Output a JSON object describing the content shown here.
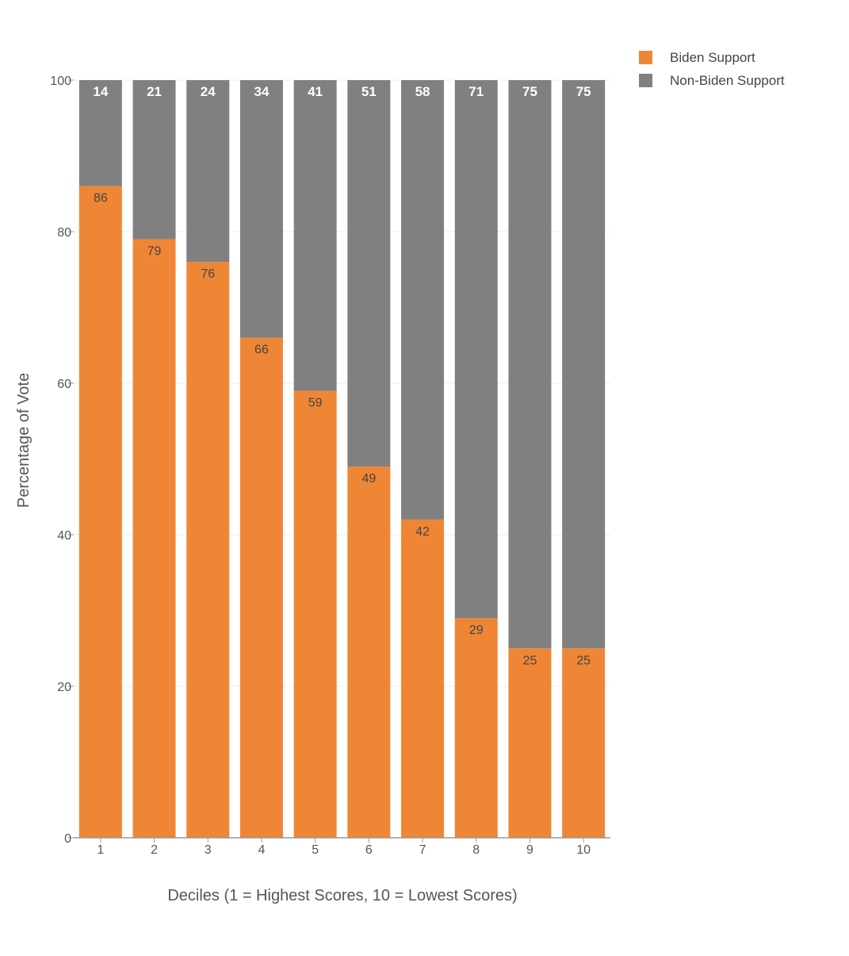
{
  "chart_data": {
    "type": "bar",
    "stacked": true,
    "categories": [
      "1",
      "2",
      "3",
      "4",
      "5",
      "6",
      "7",
      "8",
      "9",
      "10"
    ],
    "series": [
      {
        "name": "Biden Support",
        "color": "#ef8636",
        "values": [
          86,
          79,
          76,
          66,
          59,
          49,
          42,
          29,
          25,
          25
        ]
      },
      {
        "name": "Non-Biden Support",
        "color": "#808080",
        "values": [
          14,
          21,
          24,
          34,
          41,
          51,
          58,
          71,
          75,
          75
        ]
      }
    ],
    "title": "",
    "xlabel": "Deciles (1 = Highest Scores, 10 = Lowest Scores)",
    "ylabel": "Percentage of Vote",
    "ylim": [
      0,
      100
    ],
    "yticks": [
      0,
      20,
      40,
      60,
      80,
      100
    ],
    "grid": true,
    "legend": "top-right"
  }
}
